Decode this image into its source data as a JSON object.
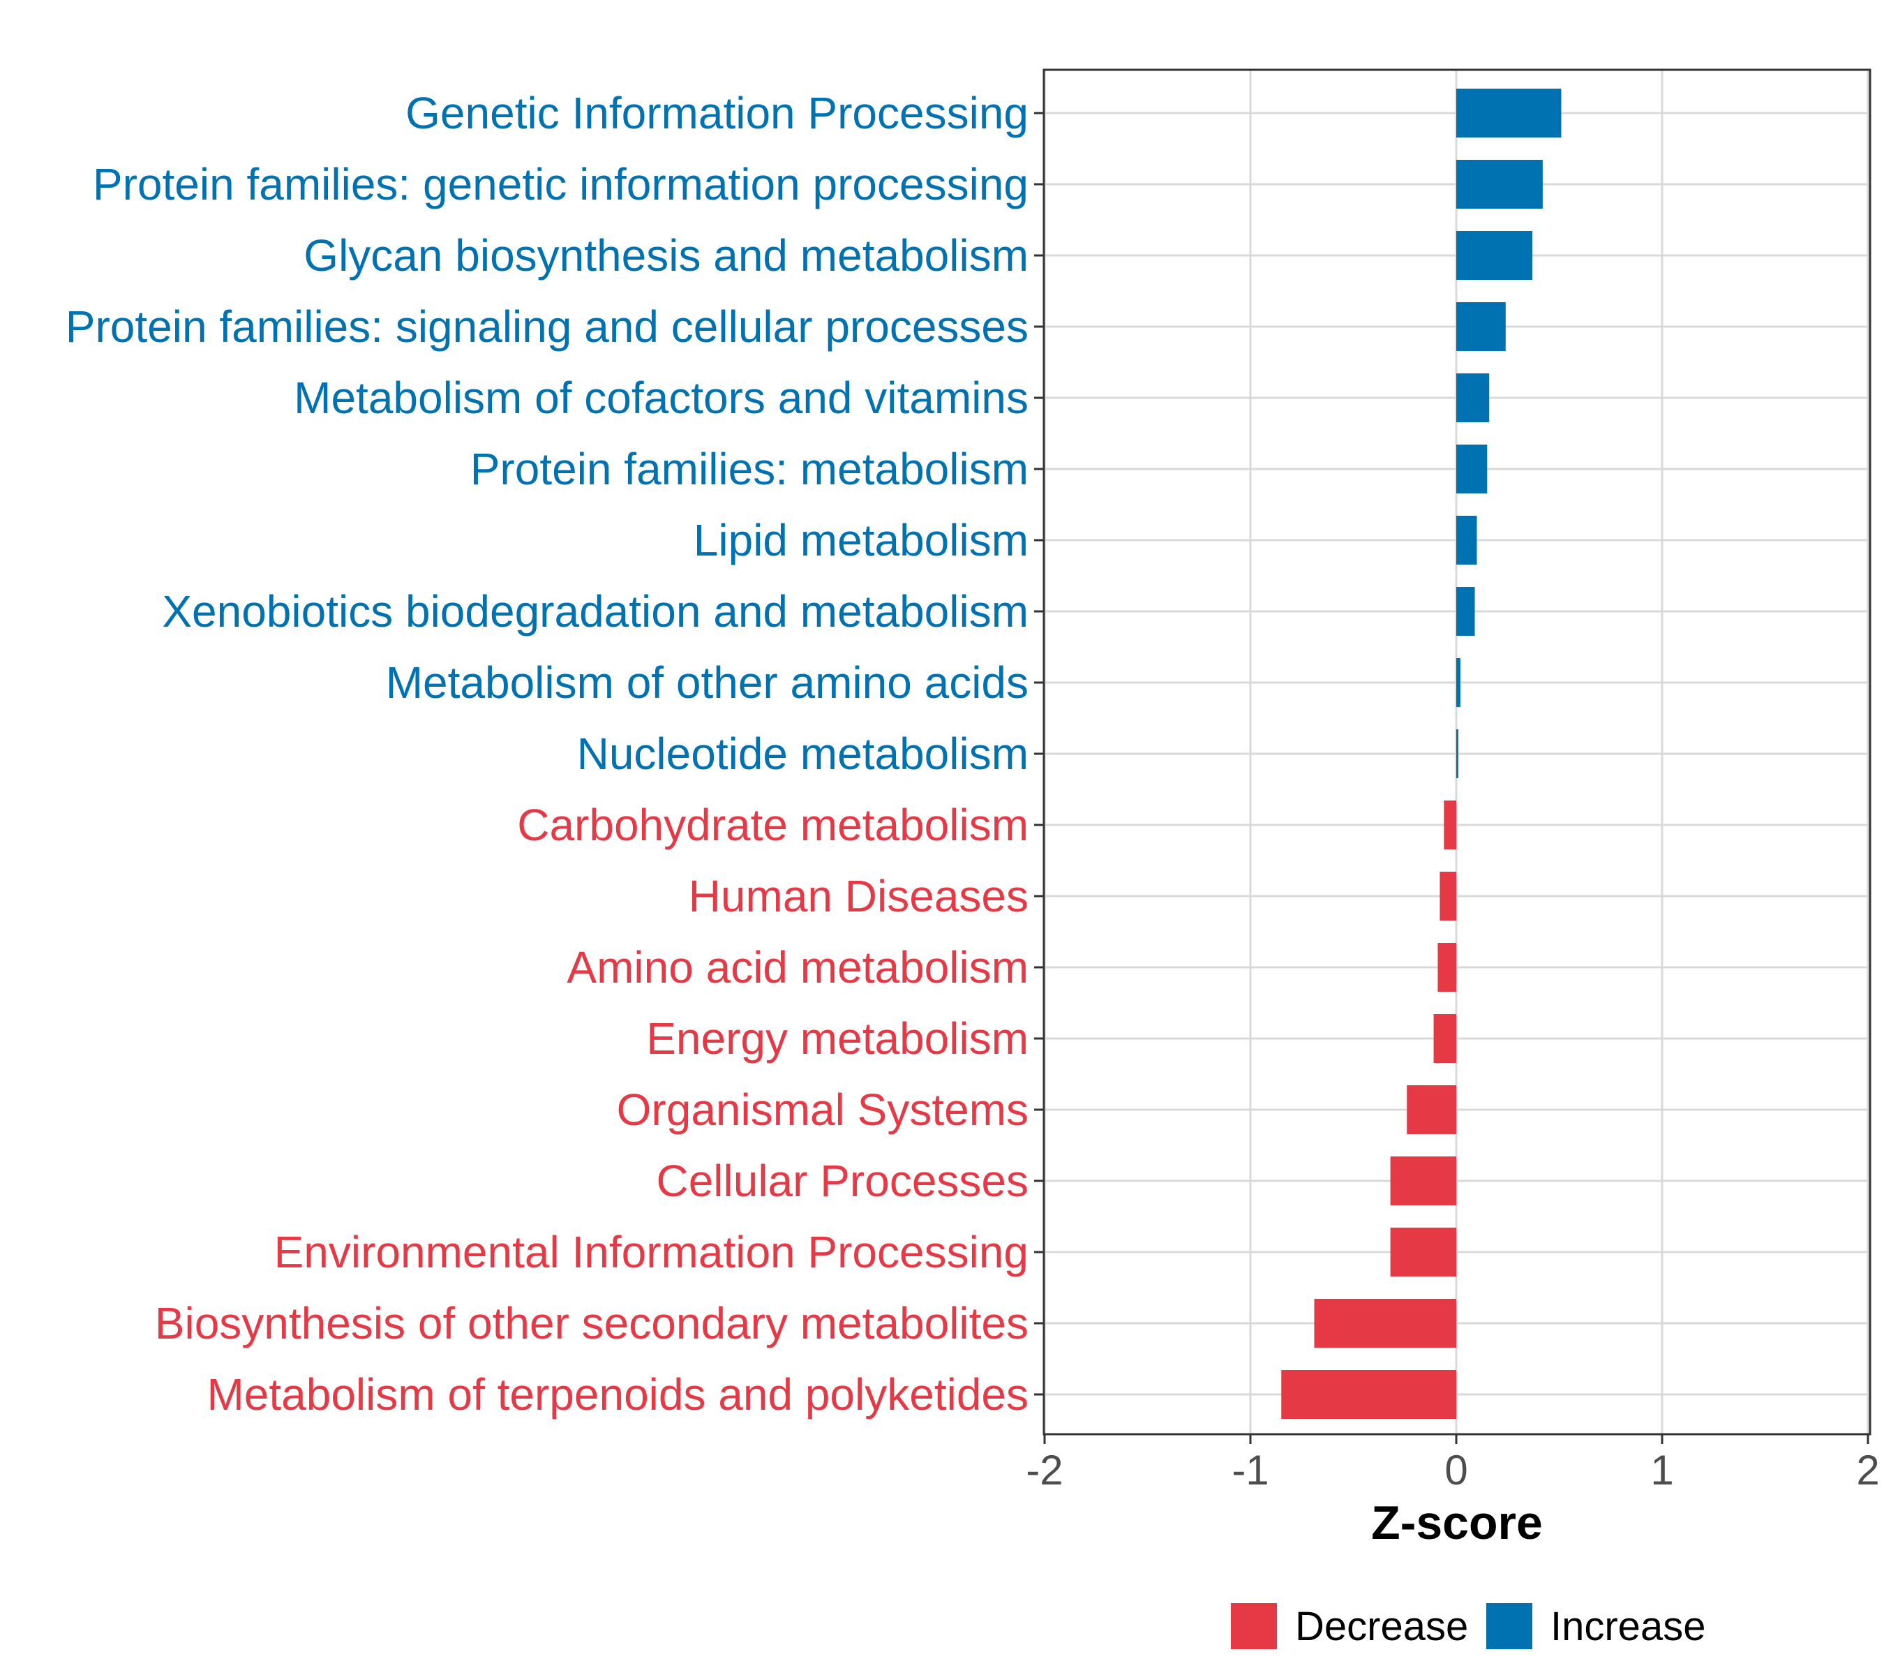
{
  "chart_data": {
    "type": "bar",
    "orientation": "horizontal",
    "xlabel": "Z-score",
    "xlim": [
      -2,
      2
    ],
    "xticks": [
      -2,
      -1,
      0,
      1,
      2
    ],
    "grid": true,
    "categories": [
      "Genetic Information Processing",
      "Protein families: genetic information processing",
      "Glycan biosynthesis and metabolism",
      "Protein families: signaling and cellular processes",
      "Metabolism of cofactors and vitamins",
      "Protein families: metabolism",
      "Lipid metabolism",
      "Xenobiotics biodegradation and metabolism",
      "Metabolism of other amino acids",
      "Nucleotide metabolism",
      "Carbohydrate metabolism",
      "Human Diseases",
      "Amino acid metabolism",
      "Energy metabolism",
      "Organismal Systems",
      "Cellular Processes",
      "Environmental Information Processing",
      "Biosynthesis of other secondary metabolites",
      "Metabolism of terpenoids and polyketides"
    ],
    "values": [
      0.51,
      0.42,
      0.37,
      0.24,
      0.16,
      0.15,
      0.1,
      0.09,
      0.02,
      0.01,
      -0.06,
      -0.08,
      -0.09,
      -0.11,
      -0.24,
      -0.32,
      -0.32,
      -0.69,
      -0.85
    ],
    "groups": [
      "Increase",
      "Increase",
      "Increase",
      "Increase",
      "Increase",
      "Increase",
      "Increase",
      "Increase",
      "Increase",
      "Increase",
      "Decrease",
      "Decrease",
      "Decrease",
      "Decrease",
      "Decrease",
      "Decrease",
      "Decrease",
      "Decrease",
      "Decrease"
    ],
    "colors": {
      "Decrease": "#E63946",
      "Increase": "#0072B2"
    },
    "legend": {
      "position": "bottom",
      "entries": [
        {
          "label": "Decrease",
          "group": "Decrease"
        },
        {
          "label": "Increase",
          "group": "Increase"
        }
      ]
    }
  }
}
